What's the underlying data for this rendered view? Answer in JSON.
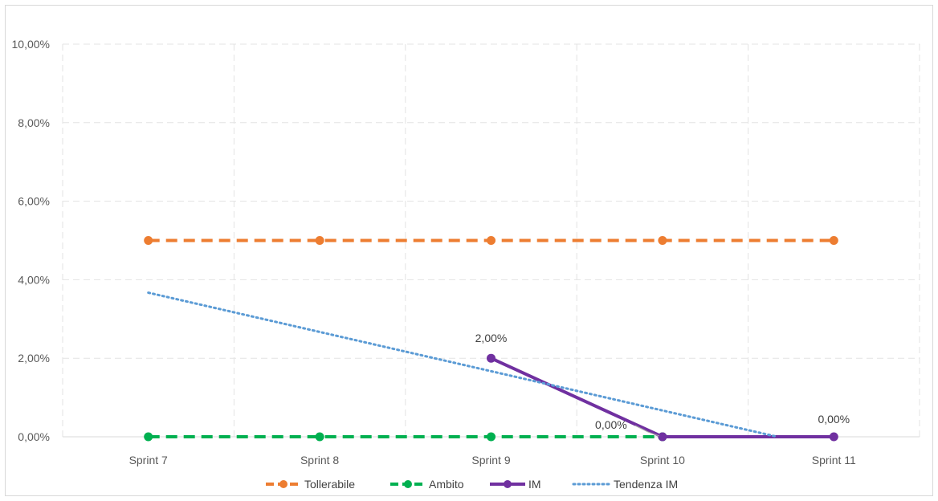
{
  "chart_data": {
    "type": "line",
    "categories": [
      "Sprint 7",
      "Sprint 8",
      "Sprint 9",
      "Sprint 10",
      "Sprint 11"
    ],
    "ylim": [
      0,
      10
    ],
    "yticks": [
      0,
      2,
      4,
      6,
      8,
      10
    ],
    "ytick_labels": [
      "0,00%",
      "2,00%",
      "4,00%",
      "6,00%",
      "8,00%",
      "10,00%"
    ],
    "grid": true,
    "legend_position": "bottom",
    "series": [
      {
        "name": "Tollerabile",
        "values": [
          5,
          5,
          5,
          5,
          5
        ],
        "color": "#ED7D31",
        "style": "dashed",
        "markers": true
      },
      {
        "name": "Ambito",
        "values": [
          0,
          0,
          0,
          0,
          null
        ],
        "color": "#00B050",
        "style": "dashed",
        "markers": true
      },
      {
        "name": "IM",
        "values": [
          null,
          null,
          2,
          0,
          0
        ],
        "color": "#7030A0",
        "style": "solid",
        "markers": true
      },
      {
        "name": "Tendenza IM",
        "values": [
          3.67,
          2.67,
          1.67,
          0.67,
          -0.33
        ],
        "color": "#5B9BD5",
        "style": "dotted",
        "markers": false
      }
    ],
    "data_labels": [
      {
        "series": "IM",
        "index": 2,
        "text": "2,00%"
      },
      {
        "series": "IM",
        "index": 3,
        "text": "0,00%"
      },
      {
        "series": "IM",
        "index": 4,
        "text": "0,00%"
      }
    ]
  }
}
